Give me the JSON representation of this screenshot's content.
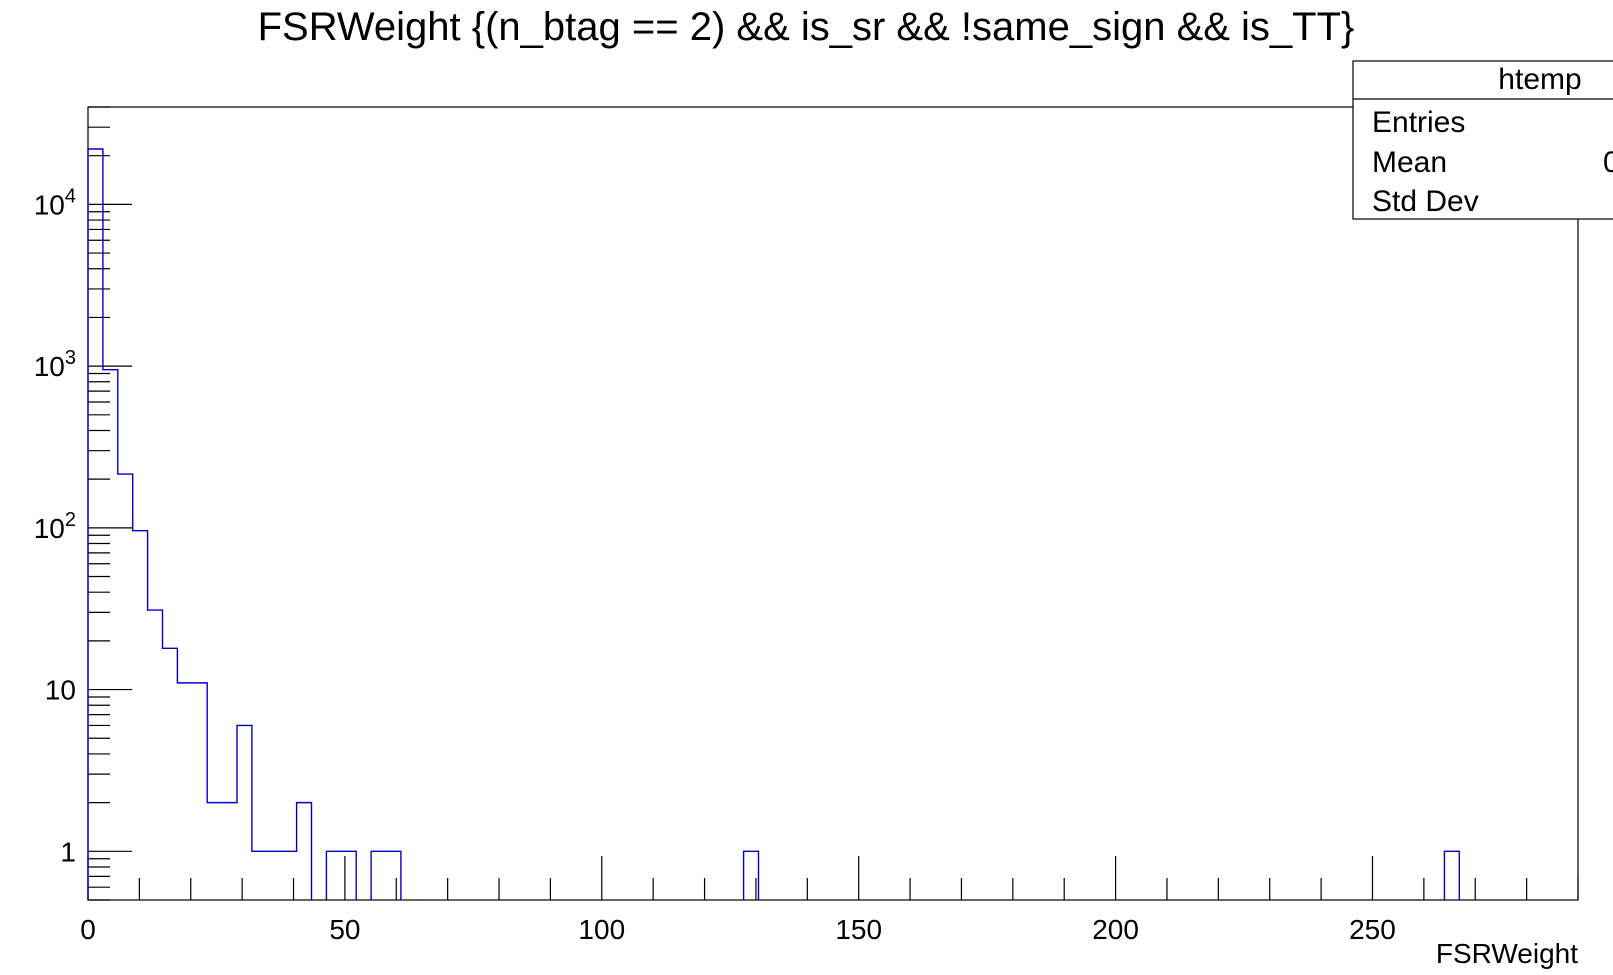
{
  "chart_data": {
    "type": "histogram",
    "title": "FSRWeight {(n_btag == 2) && is_sr && !same_sign && is_TT}",
    "xlabel": "FSRWeight",
    "ylabel": "",
    "xlim": [
      0,
      290
    ],
    "ylim": [
      0.5,
      40000
    ],
    "yscale": "log",
    "line_color": "#0000cc",
    "bin_width": 2.9,
    "x_ticks": [
      "0",
      "50",
      "100",
      "150",
      "200",
      "250"
    ],
    "x_tick_values": [
      0,
      50,
      100,
      150,
      200,
      250
    ],
    "y_ticks": [
      {
        "value": 1,
        "base": "1",
        "exp": ""
      },
      {
        "value": 10,
        "base": "10",
        "exp": ""
      },
      {
        "value": 100,
        "base": "10",
        "exp": "2"
      },
      {
        "value": 1000,
        "base": "10",
        "exp": "3"
      },
      {
        "value": 10000,
        "base": "10",
        "exp": "4"
      }
    ],
    "bins": [
      {
        "x": 0.0,
        "y": 22000
      },
      {
        "x": 2.9,
        "y": 950
      },
      {
        "x": 5.8,
        "y": 215
      },
      {
        "x": 8.7,
        "y": 96
      },
      {
        "x": 11.6,
        "y": 31
      },
      {
        "x": 14.5,
        "y": 18
      },
      {
        "x": 17.4,
        "y": 11
      },
      {
        "x": 20.3,
        "y": 11
      },
      {
        "x": 23.2,
        "y": 2
      },
      {
        "x": 26.1,
        "y": 2
      },
      {
        "x": 29.0,
        "y": 6
      },
      {
        "x": 31.9,
        "y": 1
      },
      {
        "x": 34.8,
        "y": 1
      },
      {
        "x": 37.7,
        "y": 1
      },
      {
        "x": 40.6,
        "y": 2
      },
      {
        "x": 46.4,
        "y": 1
      },
      {
        "x": 49.3,
        "y": 1
      },
      {
        "x": 55.1,
        "y": 1
      },
      {
        "x": 58.0,
        "y": 1
      },
      {
        "x": 127.6,
        "y": 1
      },
      {
        "x": 264.0,
        "y": 1
      }
    ],
    "stats": {
      "name": "htemp",
      "rows": [
        {
          "label": "Entries",
          "value": ""
        },
        {
          "label": "Mean",
          "value": "0"
        },
        {
          "label": "Std Dev",
          "value": ""
        }
      ]
    }
  }
}
